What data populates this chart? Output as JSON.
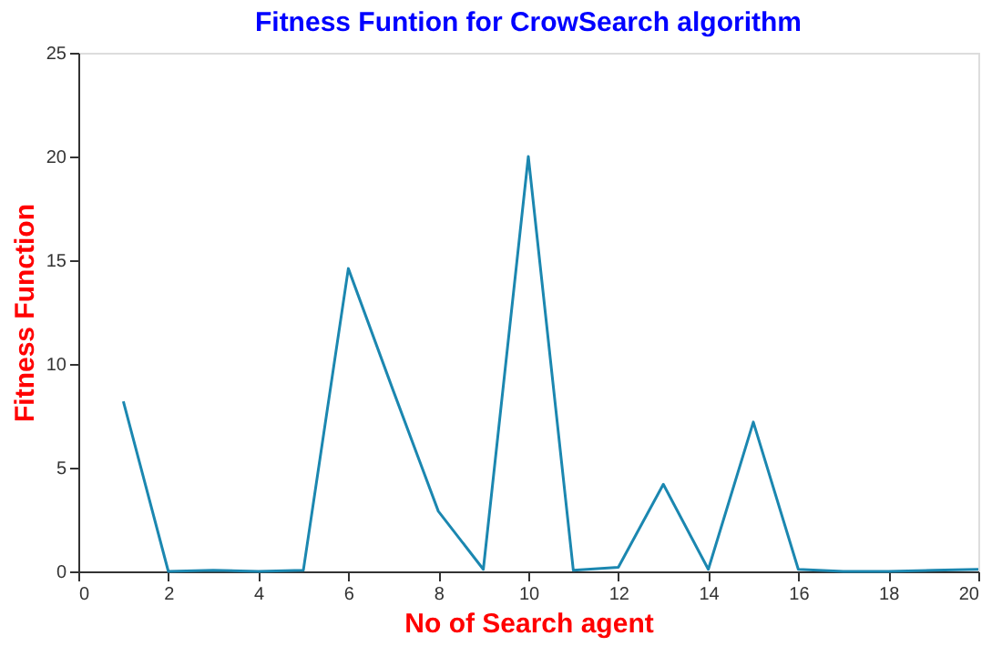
{
  "chart_data": {
    "type": "line",
    "title": "Fitness Funtion for CrowSearch algorithm",
    "xlabel": "No of Search agent",
    "ylabel": "Fitness Function",
    "x": [
      1,
      2,
      3,
      4,
      5,
      6,
      7,
      8,
      9,
      10,
      11,
      12,
      13,
      14,
      15,
      16,
      17,
      18,
      19,
      20
    ],
    "series": [
      {
        "color": "#1b87b0",
        "values": [
          8.2,
          0,
          0.05,
          0,
          0.05,
          14.6,
          8.7,
          2.9,
          0.1,
          20,
          0.05,
          0.2,
          4.2,
          0.1,
          7.2,
          0.1,
          0,
          0,
          0.05,
          0.1
        ]
      }
    ],
    "xlim": [
      0,
      20
    ],
    "xticks": [
      0,
      2,
      4,
      6,
      8,
      10,
      12,
      14,
      16,
      18,
      20
    ],
    "ylim": [
      0,
      25
    ],
    "yticks": [
      0,
      5,
      10,
      15,
      20,
      25
    ],
    "grid": false,
    "marker": "none",
    "line_style": "solid"
  }
}
